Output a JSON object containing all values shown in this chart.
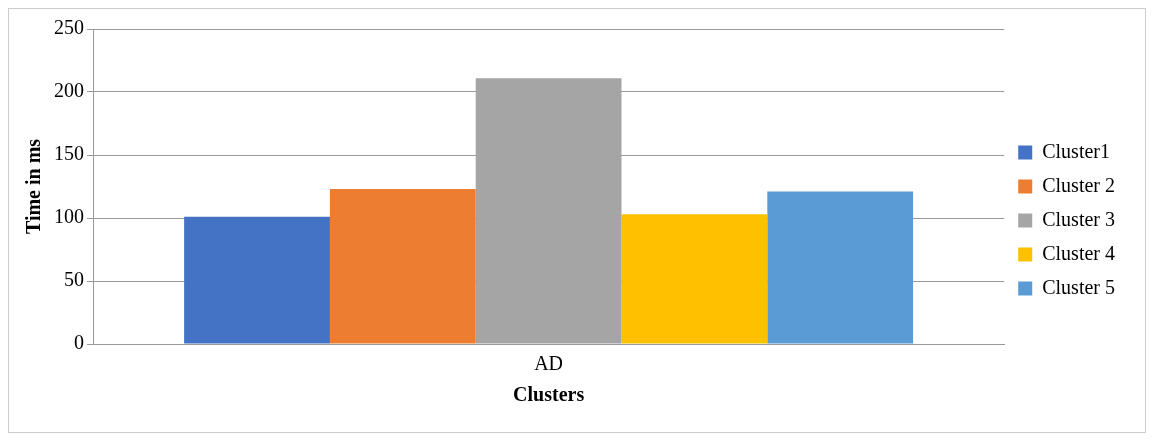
{
  "chart_data": {
    "type": "bar",
    "xlabel": "Clusters",
    "ylabel": "Time in ms",
    "categories": [
      "AD"
    ],
    "series": [
      {
        "name": "Cluster1",
        "color": "#4472c4",
        "values": [
          101
        ]
      },
      {
        "name": "Cluster 2",
        "color": "#ed7d31",
        "values": [
          123
        ]
      },
      {
        "name": "Cluster 3",
        "color": "#a5a5a5",
        "values": [
          211
        ]
      },
      {
        "name": "Cluster 4",
        "color": "#ffc000",
        "values": [
          103
        ]
      },
      {
        "name": "Cluster 5",
        "color": "#5b9bd5",
        "values": [
          121
        ]
      }
    ],
    "ylim": [
      0,
      250
    ],
    "yticks": [
      0,
      50,
      100,
      150,
      200,
      250
    ],
    "grid": "y",
    "legend": "right"
  }
}
